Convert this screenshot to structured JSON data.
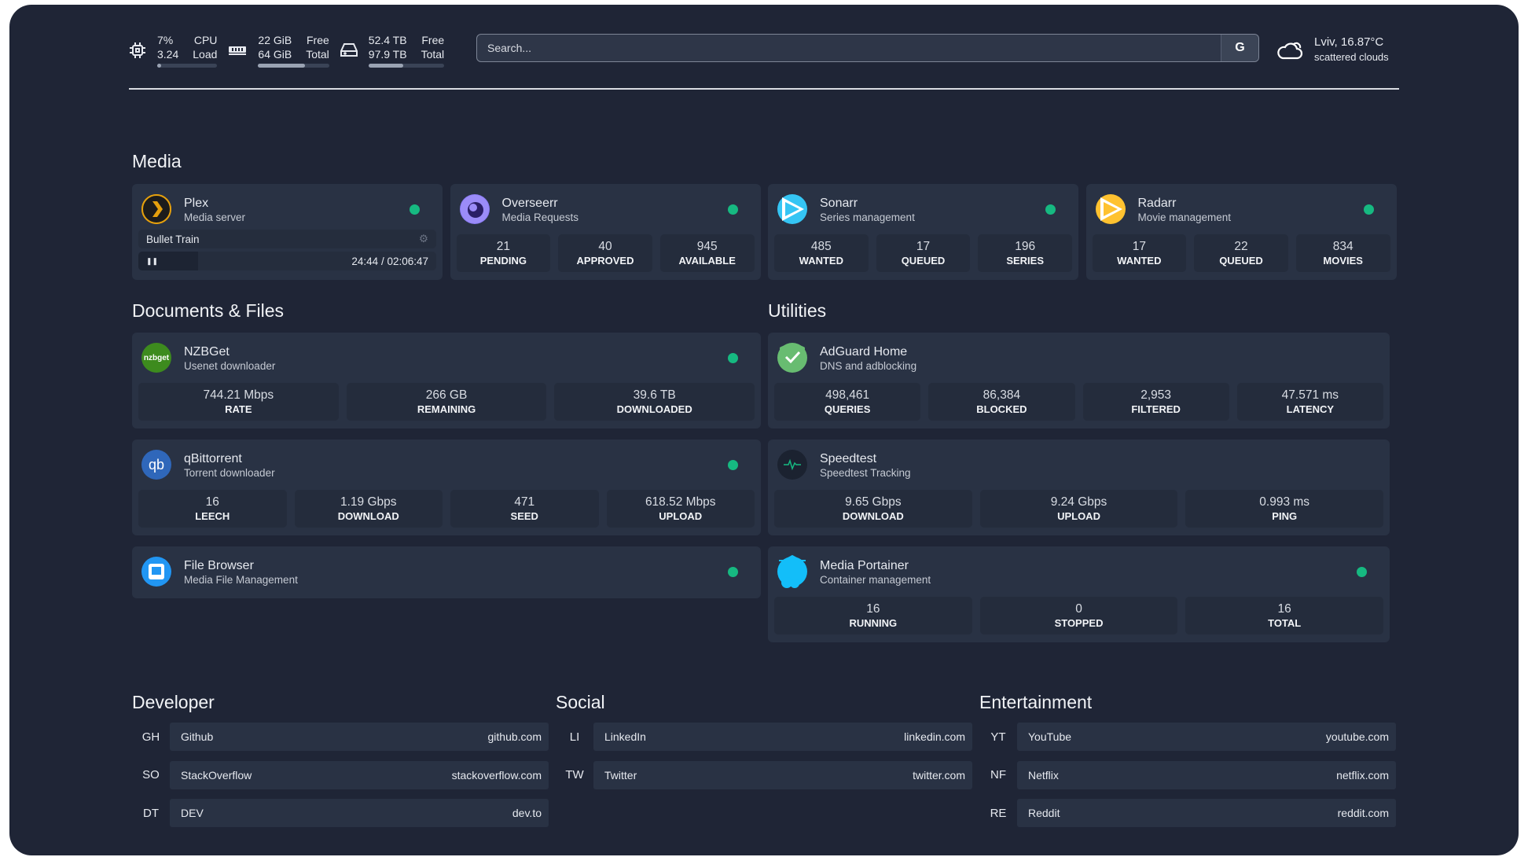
{
  "header": {
    "cpu": {
      "icon": "cpu-icon",
      "value1": "7%",
      "label1": "CPU",
      "value2": "3.24",
      "label2": "Load",
      "usage_percent": 7
    },
    "memory": {
      "icon": "memory-icon",
      "value1": "22 GiB",
      "label1": "Free",
      "value2": "64 GiB",
      "label2": "Total",
      "usage_percent": 66
    },
    "disk": {
      "icon": "disk-icon",
      "value1": "52.4 TB",
      "label1": "Free",
      "value2": "97.9 TB",
      "label2": "Total",
      "usage_percent": 46
    },
    "search": {
      "placeholder": "Search...",
      "button": "G"
    },
    "weather": {
      "icon": "cloud-icon",
      "location": "Lviv, 16.87°C",
      "condition": "scattered clouds"
    }
  },
  "sections": {
    "media": "Media",
    "documents": "Documents & Files",
    "utilities": "Utilities",
    "developer": "Developer",
    "social": "Social",
    "entertainment": "Entertainment"
  },
  "media": [
    {
      "name": "Plex",
      "desc": "Media server",
      "icon": "plex-icon",
      "color": "#e5a00d",
      "status": "online",
      "now_playing": {
        "title": "Bullet Train",
        "time": "24:44 / 02:06:47",
        "progress_percent": 20
      }
    },
    {
      "name": "Overseerr",
      "desc": "Media Requests",
      "icon": "overseerr-icon",
      "color": "#8b7cf6",
      "status": "online",
      "stats": [
        {
          "v": "21",
          "l": "PENDING"
        },
        {
          "v": "40",
          "l": "APPROVED"
        },
        {
          "v": "945",
          "l": "AVAILABLE"
        }
      ]
    },
    {
      "name": "Sonarr",
      "desc": "Series management",
      "icon": "sonarr-icon",
      "color": "#35c5f4",
      "status": "online",
      "stats": [
        {
          "v": "485",
          "l": "WANTED"
        },
        {
          "v": "17",
          "l": "QUEUED"
        },
        {
          "v": "196",
          "l": "SERIES"
        }
      ]
    },
    {
      "name": "Radarr",
      "desc": "Movie management",
      "icon": "radarr-icon",
      "color": "#ffc230",
      "status": "online",
      "stats": [
        {
          "v": "17",
          "l": "WANTED"
        },
        {
          "v": "22",
          "l": "QUEUED"
        },
        {
          "v": "834",
          "l": "MOVIES"
        }
      ]
    }
  ],
  "documents": [
    {
      "name": "NZBGet",
      "desc": "Usenet downloader",
      "icon": "nzbget-icon",
      "color": "#3d8b1e",
      "status": "online",
      "stats": [
        {
          "v": "744.21 Mbps",
          "l": "RATE"
        },
        {
          "v": "266 GB",
          "l": "REMAINING"
        },
        {
          "v": "39.6 TB",
          "l": "DOWNLOADED"
        }
      ]
    },
    {
      "name": "qBittorrent",
      "desc": "Torrent downloader",
      "icon": "qbittorrent-icon",
      "color": "#2f67ba",
      "status": "online",
      "stats": [
        {
          "v": "16",
          "l": "LEECH"
        },
        {
          "v": "1.19 Gbps",
          "l": "DOWNLOAD"
        },
        {
          "v": "471",
          "l": "SEED"
        },
        {
          "v": "618.52 Mbps",
          "l": "UPLOAD"
        }
      ]
    },
    {
      "name": "File Browser",
      "desc": "Media File Management",
      "icon": "file-browser-icon",
      "color": "#2196f3",
      "status": "online"
    }
  ],
  "utilities": [
    {
      "name": "AdGuard Home",
      "desc": "DNS and adblocking",
      "icon": "adguard-icon",
      "color": "#68bc71",
      "stats": [
        {
          "v": "498,461",
          "l": "QUERIES"
        },
        {
          "v": "86,384",
          "l": "BLOCKED"
        },
        {
          "v": "2,953",
          "l": "FILTERED"
        },
        {
          "v": "47.571 ms",
          "l": "LATENCY"
        }
      ]
    },
    {
      "name": "Speedtest",
      "desc": "Speedtest Tracking",
      "icon": "speedtest-icon",
      "color": "#16b981",
      "stats": [
        {
          "v": "9.65 Gbps",
          "l": "DOWNLOAD"
        },
        {
          "v": "9.24 Gbps",
          "l": "UPLOAD"
        },
        {
          "v": "0.993 ms",
          "l": "PING"
        }
      ]
    },
    {
      "name": "Media Portainer",
      "desc": "Container management",
      "icon": "portainer-icon",
      "color": "#13bef9",
      "status": "online",
      "stats": [
        {
          "v": "16",
          "l": "RUNNING"
        },
        {
          "v": "0",
          "l": "STOPPED"
        },
        {
          "v": "16",
          "l": "TOTAL"
        }
      ]
    }
  ],
  "bookmarks": {
    "developer": [
      {
        "abbr": "GH",
        "name": "Github",
        "url": "github.com"
      },
      {
        "abbr": "SO",
        "name": "StackOverflow",
        "url": "stackoverflow.com"
      },
      {
        "abbr": "DT",
        "name": "DEV",
        "url": "dev.to"
      }
    ],
    "social": [
      {
        "abbr": "LI",
        "name": "LinkedIn",
        "url": "linkedin.com"
      },
      {
        "abbr": "TW",
        "name": "Twitter",
        "url": "twitter.com"
      }
    ],
    "entertainment": [
      {
        "abbr": "YT",
        "name": "YouTube",
        "url": "youtube.com"
      },
      {
        "abbr": "NF",
        "name": "Netflix",
        "url": "netflix.com"
      },
      {
        "abbr": "RE",
        "name": "Reddit",
        "url": "reddit.com"
      }
    ]
  }
}
